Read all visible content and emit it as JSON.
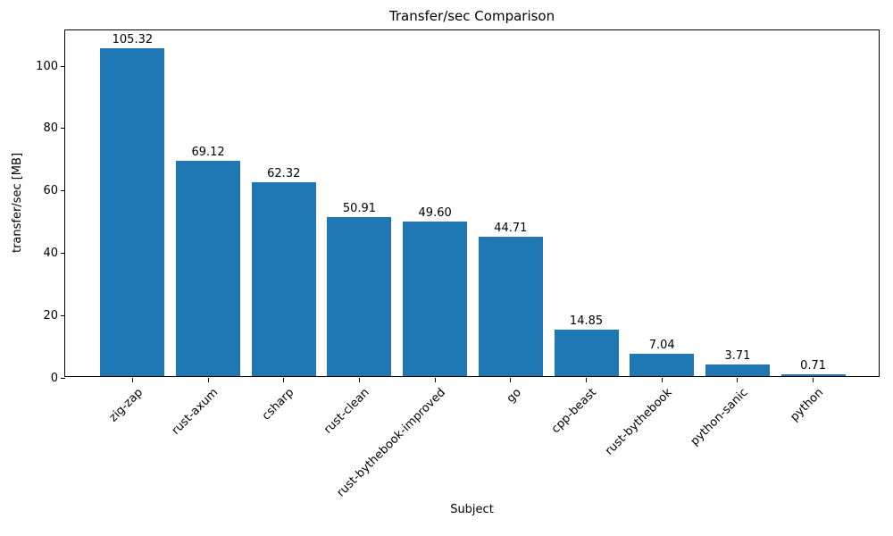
{
  "chart_data": {
    "type": "bar",
    "title": "Transfer/sec Comparison",
    "xlabel": "Subject",
    "ylabel": "transfer/sec [MB]",
    "categories": [
      "zig-zap",
      "rust-axum",
      "csharp",
      "rust-clean",
      "rust-bythebook-improved",
      "go",
      "cpp-beast",
      "rust-bythebook",
      "python-sanic",
      "python"
    ],
    "values": [
      105.32,
      69.12,
      62.32,
      50.91,
      49.6,
      44.71,
      14.85,
      7.04,
      3.71,
      0.71
    ],
    "value_labels": [
      "105.32",
      "69.12",
      "62.32",
      "50.91",
      "49.60",
      "44.71",
      "14.85",
      "7.04",
      "3.71",
      "0.71"
    ],
    "yticks": [
      0,
      20,
      40,
      60,
      80,
      100
    ],
    "ylim": [
      0,
      111.5
    ],
    "bar_color": "#1f77b4",
    "text_color": "#000000",
    "grid": false,
    "legend_position": "none"
  }
}
